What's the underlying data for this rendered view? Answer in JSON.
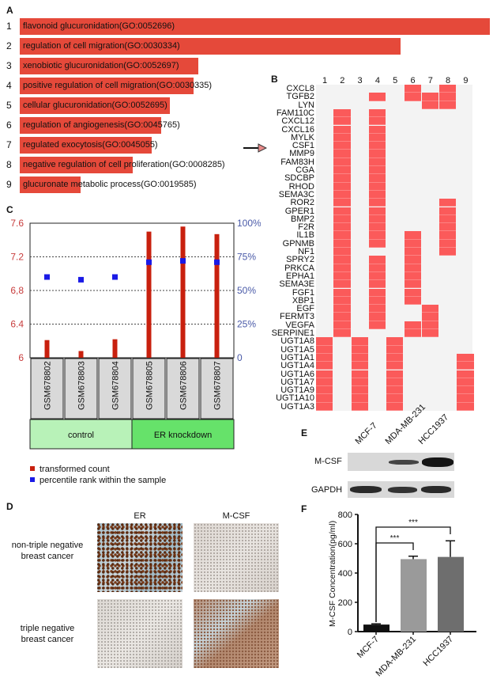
{
  "panel_labels": {
    "a": "A",
    "b": "B",
    "c": "C",
    "d": "D",
    "e": "E",
    "f": "F"
  },
  "colors": {
    "go_bar": "#e5493a",
    "heat_on": "#fb5a5a",
    "heat_off": "#f3f3f3",
    "count_bar": "#c8200e",
    "percentile": "#1a1ae6",
    "control": "#b8f2b8",
    "knockdown": "#66e26a"
  },
  "chart_data": [
    {
      "type": "bar",
      "panel": "A",
      "orientation": "horizontal",
      "categories": [
        "1",
        "2",
        "3",
        "4",
        "5",
        "6",
        "7",
        "8",
        "9"
      ],
      "labels": [
        "flavonoid glucuronidation(GO:0052696)",
        "regulation of cell migration(GO:0030334)",
        "xenobiotic glucuronidation(GO:0052697)",
        "positive regulation of cell migration(GO:0030335)",
        "cellular glucuronidation(GO:0052695)",
        "regulation of angiogenesis(GO:0045765)",
        "regulated exocytosis(GO:0045055)",
        "negative regulation of cell proliferation(GO:0008285)",
        "glucuronate metabolic process(GO:0019585)"
      ],
      "values": [
        1.0,
        0.81,
        0.38,
        0.37,
        0.32,
        0.3,
        0.28,
        0.24,
        0.13
      ]
    },
    {
      "type": "heatmap",
      "panel": "B",
      "columns": [
        "1",
        "2",
        "3",
        "4",
        "5",
        "6",
        "7",
        "8",
        "9"
      ],
      "highlight": "CSF1",
      "rows": [
        {
          "gene": "CXCL8",
          "on": [
            6,
            8
          ]
        },
        {
          "gene": "TGFB2",
          "on": [
            4,
            6,
            7,
            8
          ]
        },
        {
          "gene": "LYN",
          "on": [
            7,
            8
          ]
        },
        {
          "gene": "FAM110C",
          "on": [
            2,
            4
          ]
        },
        {
          "gene": "CXCL12",
          "on": [
            2,
            4
          ]
        },
        {
          "gene": "CXCL16",
          "on": [
            2,
            4
          ]
        },
        {
          "gene": "MYLK",
          "on": [
            2,
            4
          ]
        },
        {
          "gene": "CSF1",
          "on": [
            2,
            4
          ]
        },
        {
          "gene": "MMP9",
          "on": [
            2,
            4
          ]
        },
        {
          "gene": "FAM83H",
          "on": [
            2,
            4
          ]
        },
        {
          "gene": "CGA",
          "on": [
            2,
            4
          ]
        },
        {
          "gene": "SDCBP",
          "on": [
            2,
            4
          ]
        },
        {
          "gene": "RHOD",
          "on": [
            2,
            4
          ]
        },
        {
          "gene": "SEMA3C",
          "on": [
            2,
            4
          ]
        },
        {
          "gene": "ROR2",
          "on": [
            2,
            4,
            8
          ]
        },
        {
          "gene": "GPER1",
          "on": [
            2,
            4,
            8
          ]
        },
        {
          "gene": "BMP2",
          "on": [
            2,
            4,
            8
          ]
        },
        {
          "gene": "F2R",
          "on": [
            2,
            4,
            8
          ]
        },
        {
          "gene": "IL1B",
          "on": [
            2,
            4,
            6,
            8
          ]
        },
        {
          "gene": "GPNMB",
          "on": [
            2,
            4,
            6,
            8
          ]
        },
        {
          "gene": "NF1",
          "on": [
            2,
            6,
            8
          ]
        },
        {
          "gene": "SPRY2",
          "on": [
            2,
            4,
            6
          ]
        },
        {
          "gene": "PRKCA",
          "on": [
            2,
            4,
            6
          ]
        },
        {
          "gene": "EPHA1",
          "on": [
            2,
            4,
            6
          ]
        },
        {
          "gene": "SEMA3E",
          "on": [
            2,
            4,
            6
          ]
        },
        {
          "gene": "FGF1",
          "on": [
            2,
            4,
            6
          ]
        },
        {
          "gene": "XBP1",
          "on": [
            2,
            4,
            6
          ]
        },
        {
          "gene": "EGF",
          "on": [
            2,
            4,
            7
          ]
        },
        {
          "gene": "FERMT3",
          "on": [
            2,
            4,
            7
          ]
        },
        {
          "gene": "VEGFA",
          "on": [
            2,
            4,
            6,
            7
          ]
        },
        {
          "gene": "SERPINE1",
          "on": [
            2,
            6,
            7
          ]
        },
        {
          "gene": "UGT1A8",
          "on": [
            1,
            3,
            5
          ]
        },
        {
          "gene": "UGT1A5",
          "on": [
            1,
            3,
            5
          ]
        },
        {
          "gene": "UGT1A1",
          "on": [
            1,
            3,
            5,
            9
          ]
        },
        {
          "gene": "UGT1A4",
          "on": [
            1,
            3,
            5,
            9
          ]
        },
        {
          "gene": "UGT1A6",
          "on": [
            1,
            3,
            5,
            9
          ]
        },
        {
          "gene": "UGT1A7",
          "on": [
            1,
            3,
            5,
            9
          ]
        },
        {
          "gene": "UGT1A9",
          "on": [
            1,
            3,
            5,
            9
          ]
        },
        {
          "gene": "UGT1A10",
          "on": [
            1,
            3,
            5,
            9
          ]
        },
        {
          "gene": "UGT1A3",
          "on": [
            1,
            3,
            5,
            9
          ]
        }
      ]
    },
    {
      "type": "bar",
      "panel": "C",
      "categories": [
        "GSM678802",
        "GSM678803",
        "GSM678804",
        "GSM678805",
        "GSM678806",
        "GSM678807"
      ],
      "groups": [
        {
          "name": "control",
          "members": 3
        },
        {
          "name": "ER knockdown",
          "members": 3
        }
      ],
      "series": [
        {
          "name": "transformed count",
          "axis": "left",
          "values": [
            6.21,
            6.08,
            6.22,
            7.5,
            7.56,
            7.47
          ]
        },
        {
          "name": "percentile rank within the sample",
          "axis": "right",
          "values": [
            60,
            58,
            60,
            71,
            72,
            71
          ]
        }
      ],
      "ylim_left": [
        6,
        7.6
      ],
      "ylim_right": [
        0,
        100
      ],
      "left_ticks": [
        {
          "v": 6,
          "t": "6"
        },
        {
          "v": 6.4,
          "t": "6.4"
        },
        {
          "v": 6.8,
          "t": "6,8"
        },
        {
          "v": 7.2,
          "t": "7.2"
        },
        {
          "v": 7.6,
          "t": "7.6"
        }
      ],
      "right_ticks": [
        {
          "v": 0,
          "t": "0"
        },
        {
          "v": 25,
          "t": "25%"
        },
        {
          "v": 50,
          "t": "50%"
        },
        {
          "v": 75,
          "t": "75%"
        },
        {
          "v": 100,
          "t": "100%"
        }
      ],
      "legend": [
        "transformed count",
        "percentile rank within the sample"
      ],
      "grid": "dashed"
    },
    {
      "type": "bar",
      "panel": "F",
      "categories": [
        "MCF-7",
        "MDA-MB-231",
        "HCC1937"
      ],
      "values": [
        48,
        495,
        510
      ],
      "errors": [
        5,
        20,
        110
      ],
      "ylabel": "M-CSF Concentration(pg/ml)",
      "ylim": [
        0,
        800
      ],
      "yticks": [
        "0",
        "200",
        "400",
        "600",
        "800"
      ],
      "significance": [
        {
          "from": "MCF-7",
          "to": "MDA-MB-231",
          "label": "***"
        },
        {
          "from": "MCF-7",
          "to": "HCC1937",
          "label": "***"
        }
      ]
    }
  ],
  "panel_d": {
    "columns": [
      "ER",
      "M-CSF"
    ],
    "rows": [
      "non-triple negative\nbreast cancer",
      "triple negative\nbreast cancer"
    ],
    "row1": "non-triple negative",
    "row1b": "breast cancer",
    "row2": "triple negative",
    "row2b": "breast cancer"
  },
  "panel_e": {
    "lanes": [
      "MCF-7",
      "MDA-MB-231",
      "HCC1937"
    ],
    "blots": [
      "M-CSF",
      "GAPDH"
    ]
  }
}
